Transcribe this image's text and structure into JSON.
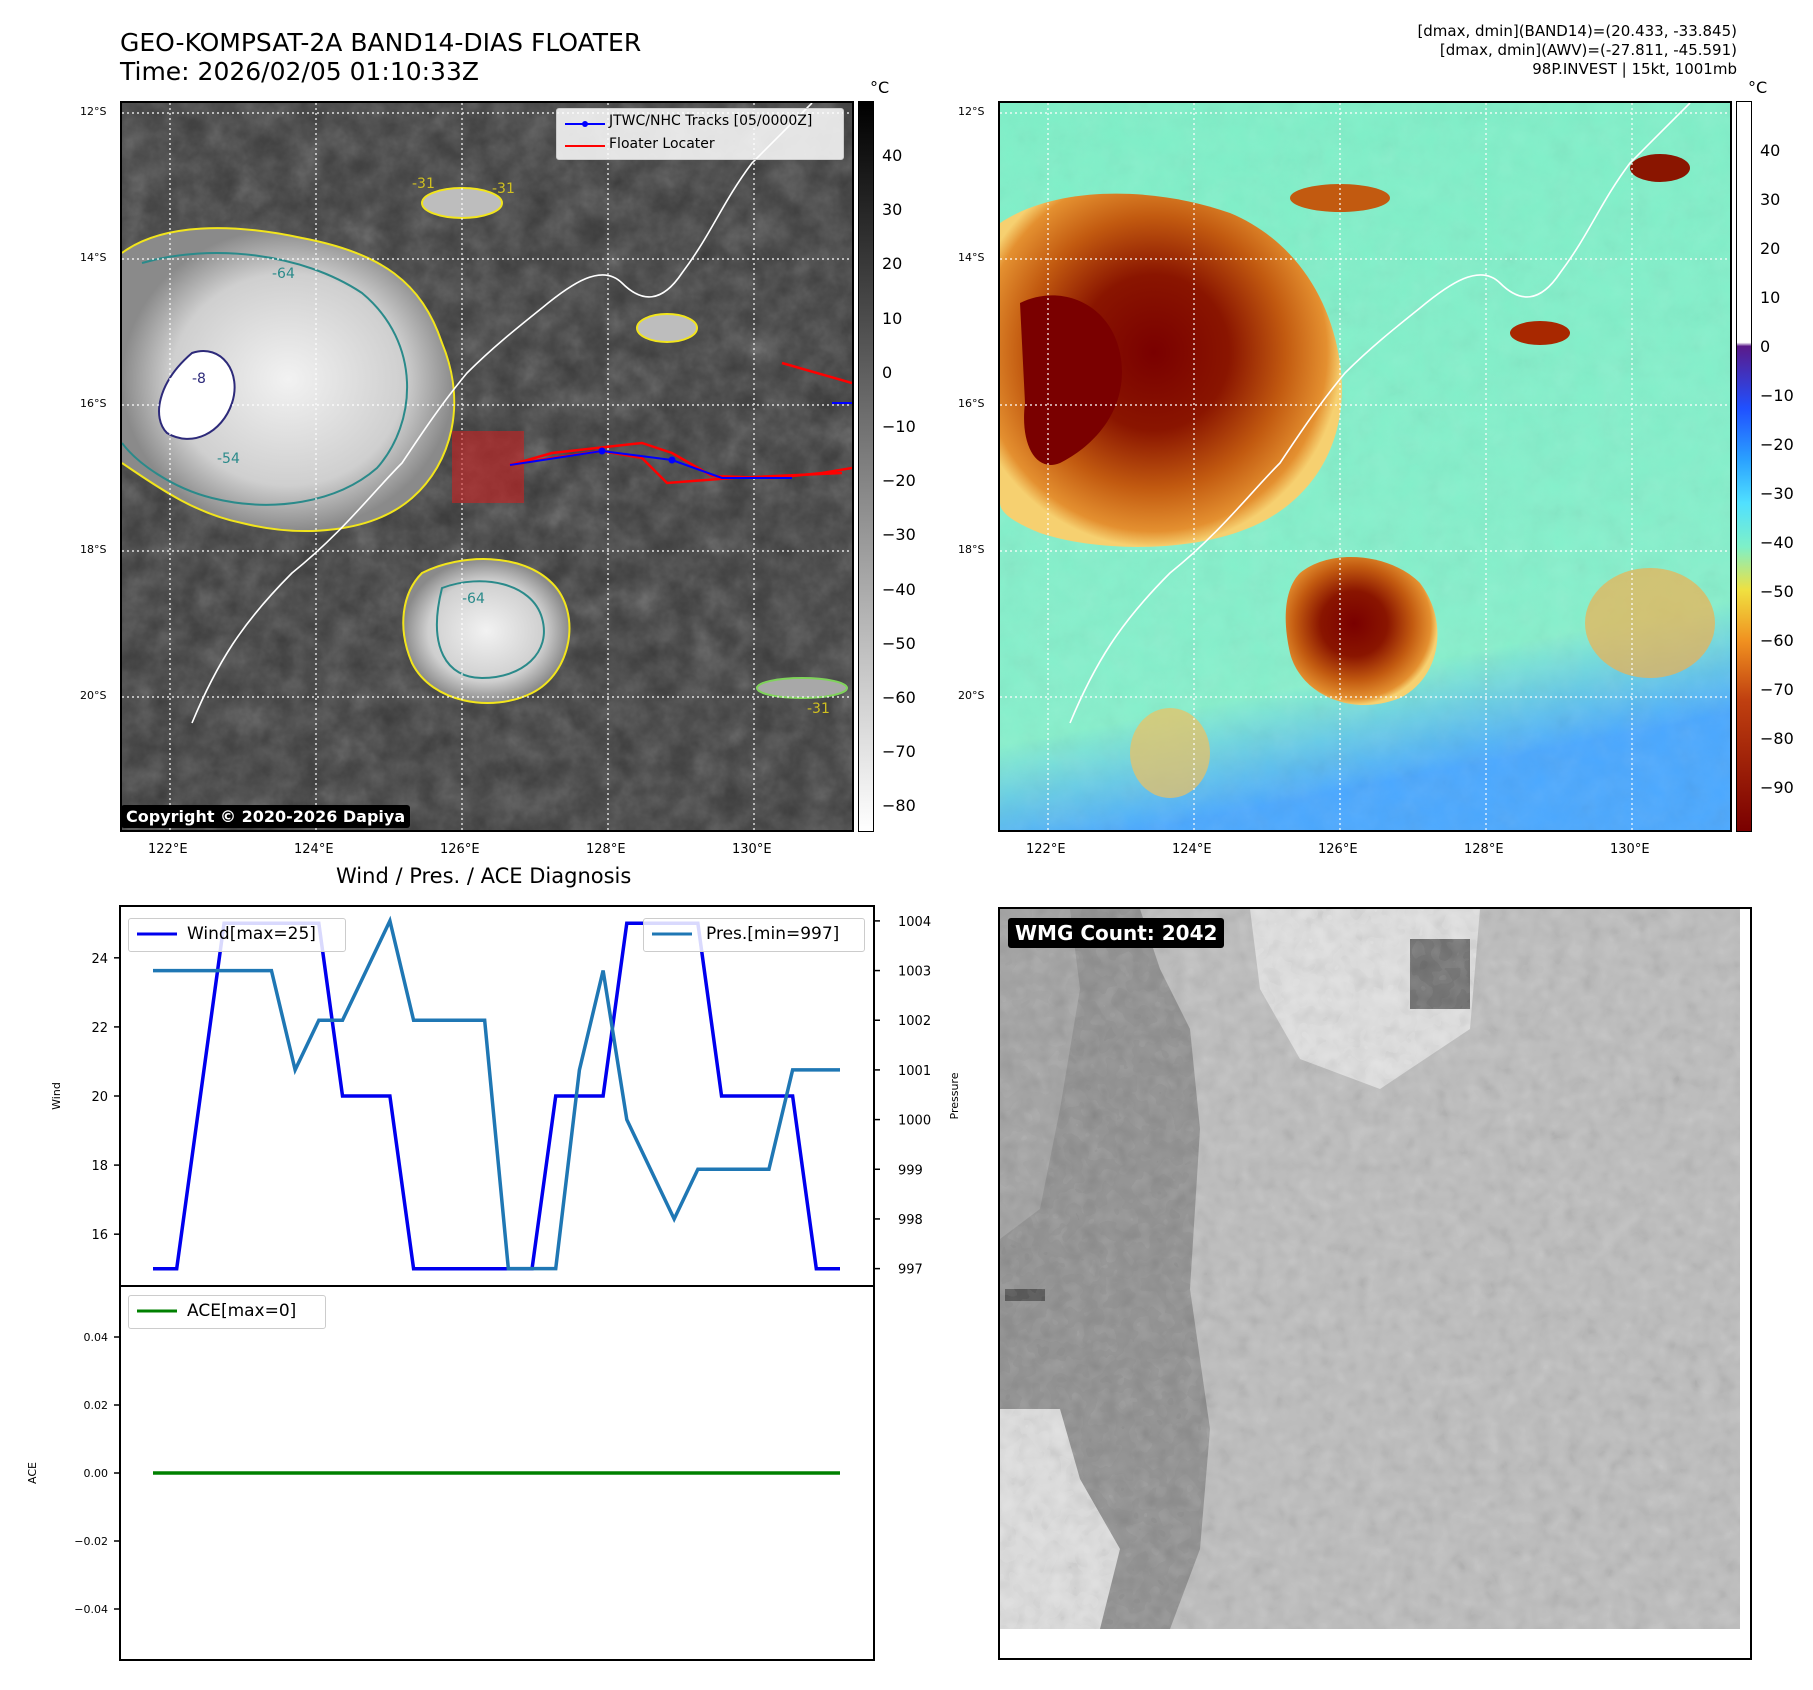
{
  "header": {
    "title_line1": "GEO-KOMPSAT-2A BAND14-DIAS FLOATER",
    "title_line2": "Time: 2026/02/05 01:10:33Z",
    "stats_line1": "[dmax, dmin](BAND14)=(20.433, -33.845)",
    "stats_line2": "[dmax, dmin](AWV)=(-27.811, -45.591)",
    "stats_line3": "98P.INVEST | 15kt, 1001mb"
  },
  "maps": {
    "lat_labels": [
      "12°S",
      "14°S",
      "16°S",
      "18°S",
      "20°S"
    ],
    "lon_labels": [
      "122°E",
      "124°E",
      "126°E",
      "128°E",
      "130°E"
    ],
    "contour_labels": [
      "-31",
      "-54",
      "-64",
      "-8"
    ],
    "colors": {
      "ir_background": "#3a3a3a",
      "cold_cloud": "#d8d8d8",
      "contour_yellow": "#f2e51c",
      "contour_green": "#7fd35a",
      "contour_teal": "#2a8a8a",
      "contour_navy": "#2d2a7a",
      "track_blue": "#0000ff",
      "locater_red": "#ff0000",
      "awv_background": "#7ef0c8",
      "awv_warm": "#c25a10",
      "awv_core": "#7a0000"
    }
  },
  "left_map": {
    "legend_track": "JTWC/NHC Tracks [05/0000Z]",
    "legend_locater": "Floater Locater",
    "copyright": "Copyright © 2020-2026 Dapiya",
    "colorbar_unit": "°C",
    "colorbar_ticks": [
      "40",
      "30",
      "20",
      "10",
      "0",
      "−10",
      "−20",
      "−30",
      "−40",
      "−50",
      "−60",
      "−70",
      "−80"
    ]
  },
  "right_map": {
    "colorbar_unit": "°C",
    "colorbar_ticks": [
      "40",
      "30",
      "20",
      "10",
      "0",
      "−10",
      "−20",
      "−30",
      "−40",
      "−50",
      "−60",
      "−70",
      "−80",
      "−90"
    ]
  },
  "chart_data": {
    "type": "line",
    "title": "Wind / Pres. / ACE Diagnosis",
    "wind_pres": {
      "ylabel_left": "Wind",
      "ylabel_right": "Pressure",
      "y_ticks_left": [
        "24",
        "22",
        "20",
        "18",
        "16"
      ],
      "y_ticks_right": [
        "1004",
        "1003",
        "1002",
        "1001",
        "1000",
        "999",
        "998",
        "997"
      ],
      "ylim_left": [
        14.5,
        25.5
      ],
      "ylim_right": [
        996.65,
        1004.3
      ],
      "series": [
        {
          "name": "Wind[max=25]",
          "axis": "left",
          "color": "#0000ee",
          "values": [
            15,
            15,
            20,
            25,
            25,
            25,
            25,
            25,
            20,
            20,
            20,
            15,
            15,
            15,
            15,
            15,
            15,
            20,
            20,
            20,
            25,
            25,
            25,
            25,
            20,
            20,
            20,
            20,
            15,
            15
          ]
        },
        {
          "name": "Pres.[min=997]",
          "axis": "right",
          "color": "#1f77b4",
          "values": [
            1003,
            1003,
            1003,
            1003,
            1003,
            1003,
            1001,
            1002,
            1002,
            1003,
            1004,
            1002,
            1002,
            1002,
            1002,
            997,
            997,
            997,
            1001,
            1003,
            1000,
            999,
            998,
            999,
            999,
            999,
            999,
            1001,
            1001,
            1001
          ]
        }
      ]
    },
    "ace": {
      "ylabel": "ACE",
      "y_ticks": [
        "0.04",
        "0.02",
        "0.00",
        "−0.02",
        "−0.04"
      ],
      "ylim": [
        -0.055,
        0.055
      ],
      "series": [
        {
          "name": "ACE[max=0]",
          "color": "#008000",
          "values": [
            0,
            0,
            0,
            0,
            0,
            0,
            0,
            0,
            0,
            0,
            0,
            0,
            0,
            0,
            0,
            0,
            0,
            0,
            0,
            0,
            0,
            0,
            0,
            0,
            0,
            0,
            0,
            0,
            0,
            0
          ]
        }
      ]
    }
  },
  "wmg": {
    "label": "WMG Count: 2042"
  }
}
